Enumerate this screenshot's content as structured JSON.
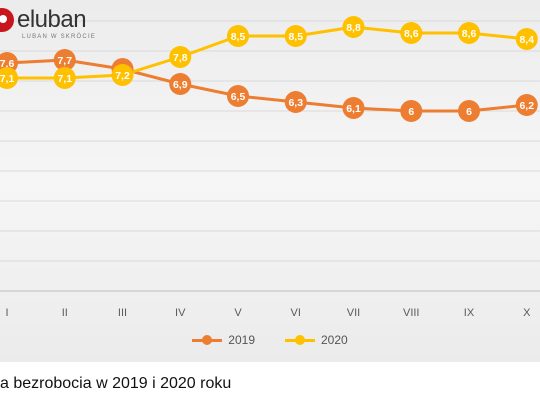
{
  "logo": {
    "text": "eluban",
    "tagline": "LUBAN W SKRÓCIE"
  },
  "caption": "a bezrobocia w 2019 i 2020 roku",
  "chart_data": {
    "type": "line",
    "categories": [
      "I",
      "II",
      "III",
      "IV",
      "V",
      "VI",
      "VII",
      "VIII",
      "IX",
      "X"
    ],
    "series": [
      {
        "name": "2019",
        "color": "#ed7d31",
        "values": [
          7.6,
          7.7,
          7.4,
          6.9,
          6.5,
          6.3,
          6.1,
          6,
          6,
          6.2
        ],
        "labels": [
          "7,6",
          "7,7",
          "7,4",
          "6,9",
          "6,5",
          "6,3",
          "6,1",
          "6",
          "6",
          "6,2"
        ]
      },
      {
        "name": "2020",
        "color": "#ffc000",
        "values": [
          7.1,
          7.1,
          7.2,
          7.8,
          8.5,
          8.5,
          8.8,
          8.6,
          8.6,
          8.4
        ],
        "labels": [
          "7,1",
          "7,1",
          "7,2",
          "7,8",
          "8,5",
          "8,5",
          "8,8",
          "8,6",
          "8,6",
          "8,4"
        ]
      }
    ],
    "ylim": [
      0,
      9
    ],
    "grid": true,
    "legend": "bottom"
  }
}
